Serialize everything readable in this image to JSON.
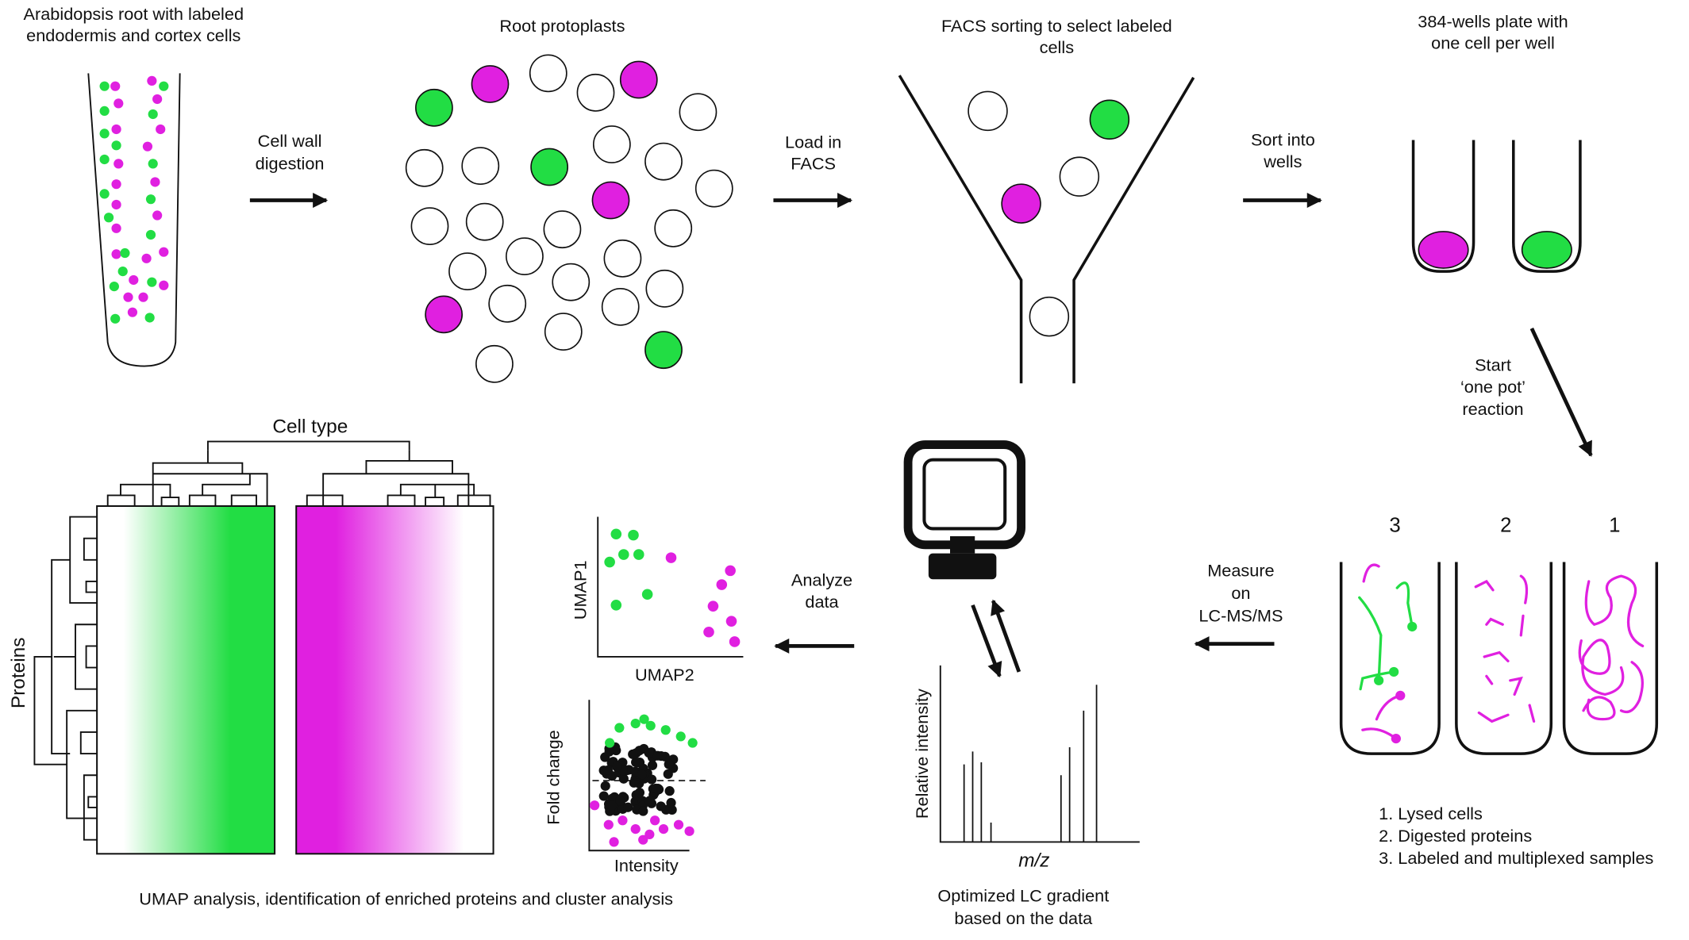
{
  "panels": {
    "root": {
      "title": [
        "Arabidopsis root with labeled",
        "endodermis and cortex cells"
      ]
    },
    "protoplasts": {
      "title": [
        "Root protoplasts"
      ]
    },
    "facs": {
      "title": [
        "FACS sorting to select labeled",
        "cells"
      ]
    },
    "plate": {
      "title": [
        "384-wells plate with",
        "one cell per well"
      ]
    },
    "reaction": {
      "tube_labels": [
        "3",
        "2",
        "1"
      ],
      "legend": [
        "1.  Lysed cells",
        "2.  Digested proteins",
        "3.  Labeled and multiplexed samples"
      ]
    },
    "ms": {
      "y_label": "Relative intensity",
      "x_label": "m/z",
      "caption": [
        "Optimized LC gradient",
        "based on the data"
      ]
    },
    "analysis": {
      "heatmap_x_label": "Cell type",
      "heatmap_y_label": "Proteins",
      "umap_y_label": "UMAP1",
      "umap_x_label": "UMAP2",
      "volcano_y_label": "Fold change",
      "volcano_x_label": "Intensity",
      "caption": [
        "UMAP analysis, identification  of enriched proteins and cluster analysis"
      ]
    }
  },
  "arrows": [
    [
      "Cell wall",
      "digestion"
    ],
    [
      "Load in",
      "FACS"
    ],
    [
      "Sort into",
      "wells"
    ],
    [
      "Start",
      "‘one pot’",
      "reaction"
    ],
    [
      "Measure",
      "on",
      "LC-MS/MS"
    ],
    [
      "Analyze",
      "data"
    ]
  ]
}
